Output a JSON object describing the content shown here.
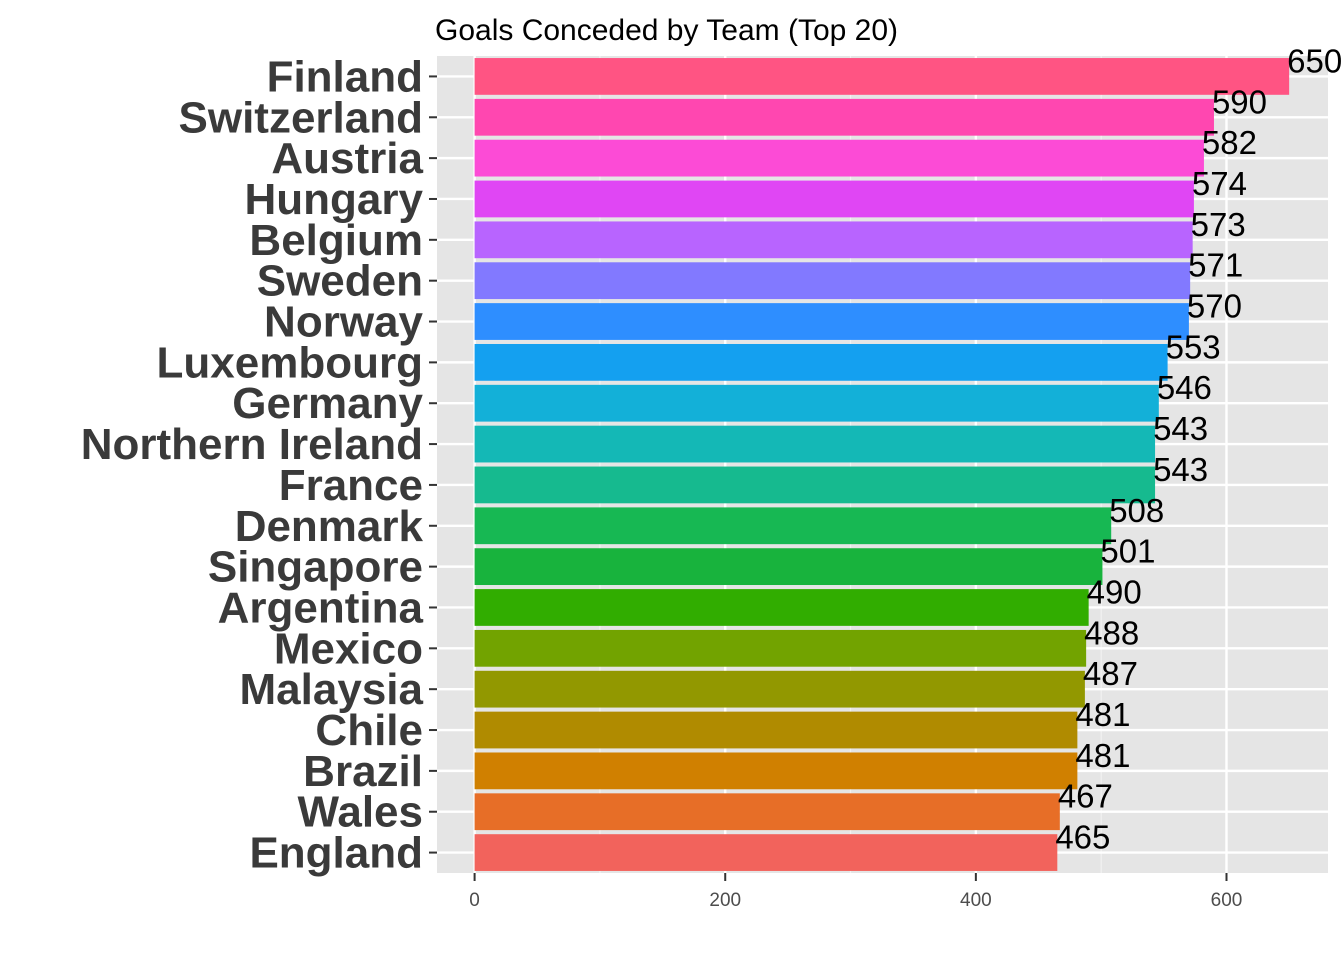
{
  "chart_data": {
    "type": "bar",
    "orientation": "horizontal",
    "title": "Goals Conceded by Team (Top 20)",
    "xlabel": "",
    "ylabel": "",
    "xlim": [
      -30,
      681
    ],
    "x_ticks": [
      0,
      200,
      400,
      600
    ],
    "x_tick_labels": [
      "0",
      "200",
      "400",
      "600"
    ],
    "grid": true,
    "legend": "none",
    "categories": [
      "Finland",
      "Switzerland",
      "Austria",
      "Hungary",
      "Belgium",
      "Sweden",
      "Norway",
      "Luxembourg",
      "Germany",
      "Northern Ireland",
      "France",
      "Denmark",
      "Singapore",
      "Argentina",
      "Mexico",
      "Malaysia",
      "Chile",
      "Brazil",
      "Wales",
      "England"
    ],
    "values": [
      650,
      590,
      582,
      574,
      573,
      571,
      570,
      553,
      546,
      543,
      543,
      508,
      501,
      490,
      488,
      487,
      481,
      481,
      467,
      465
    ],
    "value_labels": [
      "650",
      "590",
      "582",
      "574",
      "573",
      "571",
      "570",
      "553",
      "546",
      "543",
      "543",
      "508",
      "501",
      "490",
      "488",
      "487",
      "481",
      "481",
      "467",
      "465"
    ],
    "colors": [
      "#FF5483",
      "#FF47B0",
      "#FC4BD6",
      "#E046F4",
      "#B864FF",
      "#8279FF",
      "#2E8EFF",
      "#14A0F0",
      "#13B0D8",
      "#14B8B6",
      "#16BA8F",
      "#17B853",
      "#18B33D",
      "#31AD00",
      "#72A300",
      "#929800",
      "#B08B00",
      "#D08000",
      "#E76E27",
      "#F2635C"
    ],
    "colors_note_free": true
  }
}
